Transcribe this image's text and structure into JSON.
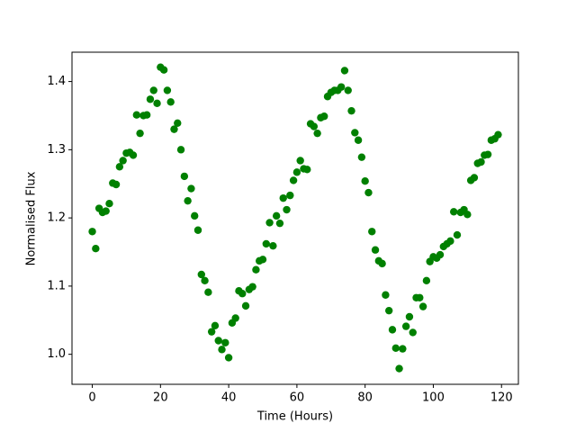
{
  "chart_data": {
    "type": "scatter",
    "x_label": "Time (Hours)",
    "y_label": "Normalised Flux",
    "color": "#008000",
    "x": [
      0,
      1,
      2,
      3,
      4,
      5,
      6,
      7,
      8,
      9,
      10,
      11,
      12,
      13,
      14,
      15,
      16,
      17,
      18,
      19,
      20,
      21,
      22,
      23,
      24,
      25,
      26,
      27,
      28,
      29,
      30,
      31,
      32,
      33,
      34,
      35,
      36,
      37,
      38,
      39,
      40,
      41,
      42,
      43,
      44,
      45,
      46,
      47,
      48,
      49,
      50,
      51,
      52,
      53,
      54,
      55,
      56,
      57,
      58,
      59,
      60,
      61,
      62,
      63,
      64,
      65,
      66,
      67,
      68,
      69,
      70,
      71,
      72,
      73,
      74,
      75,
      76,
      77,
      78,
      79,
      80,
      81,
      82,
      83,
      84,
      85,
      86,
      87,
      88,
      89,
      90,
      91,
      92,
      93,
      94,
      95,
      96,
      97,
      98,
      99,
      100,
      101,
      102,
      103,
      104,
      105,
      106,
      107,
      108,
      109,
      110,
      111,
      112,
      113,
      114,
      115,
      116,
      117,
      118,
      119
    ],
    "values": [
      1.18,
      1.155,
      1.214,
      1.208,
      1.21,
      1.221,
      1.251,
      1.249,
      1.275,
      1.284,
      1.295,
      1.296,
      1.292,
      1.351,
      1.324,
      1.35,
      1.351,
      1.374,
      1.387,
      1.368,
      1.421,
      1.417,
      1.387,
      1.37,
      1.33,
      1.339,
      1.3,
      1.261,
      1.225,
      1.243,
      1.203,
      1.182,
      1.117,
      1.108,
      1.091,
      1.033,
      1.042,
      1.02,
      1.007,
      1.017,
      0.995,
      1.046,
      1.053,
      1.093,
      1.089,
      1.071,
      1.095,
      1.099,
      1.124,
      1.137,
      1.139,
      1.162,
      1.193,
      1.159,
      1.203,
      1.192,
      1.229,
      1.212,
      1.233,
      1.255,
      1.267,
      1.284,
      1.272,
      1.271,
      1.338,
      1.334,
      1.324,
      1.347,
      1.349,
      1.378,
      1.384,
      1.387,
      1.387,
      1.392,
      1.416,
      1.387,
      1.357,
      1.325,
      1.314,
      1.289,
      1.254,
      1.237,
      1.18,
      1.153,
      1.137,
      1.133,
      1.087,
      1.064,
      1.036,
      1.009,
      0.979,
      1.008,
      1.041,
      1.055,
      1.032,
      1.083,
      1.083,
      1.07,
      1.108,
      1.136,
      1.143,
      1.141,
      1.146,
      1.158,
      1.162,
      1.166,
      1.209,
      1.175,
      1.208,
      1.212,
      1.205,
      1.255,
      1.259,
      1.28,
      1.282,
      1.292,
      1.293,
      1.314,
      1.316,
      1.322
    ],
    "xlim": [
      -5.95,
      124.95
    ],
    "xticks": [
      0,
      20,
      40,
      60,
      80,
      100,
      120
    ],
    "ylim": [
      0.956,
      1.443
    ],
    "yticks": [
      {
        "value": 1,
        "label": "1.0"
      },
      1.1,
      1.2,
      1.3,
      1.4
    ],
    "grid": false
  }
}
